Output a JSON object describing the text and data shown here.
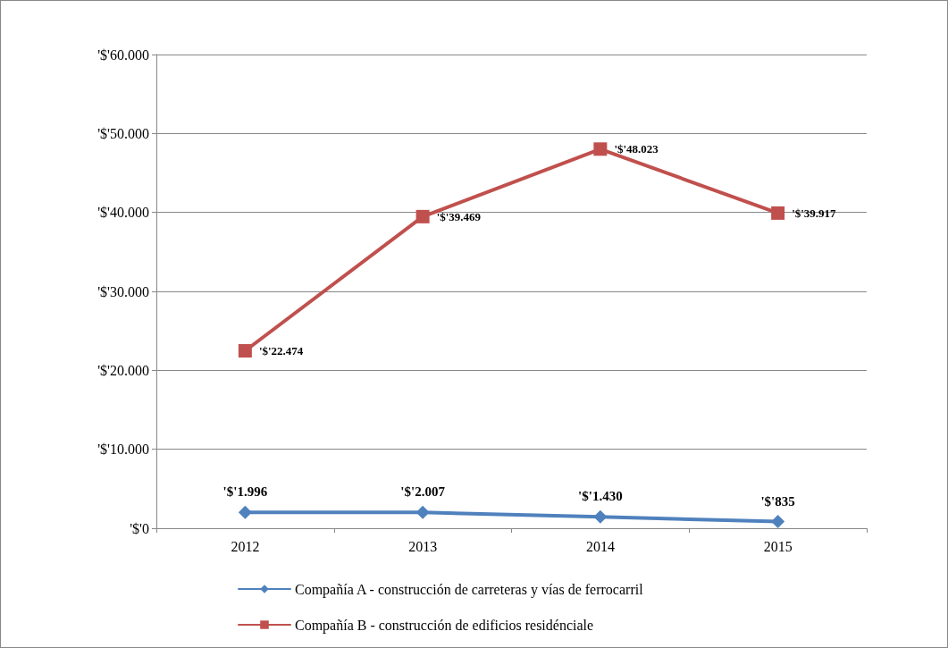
{
  "chart_data": {
    "type": "line",
    "categories": [
      "2012",
      "2013",
      "2014",
      "2015"
    ],
    "series": [
      {
        "name": "Compañía A - construcción de carreteras y vías de ferrocarril",
        "color": "#4f81bd",
        "marker": "diamond",
        "values": [
          1996,
          2007,
          1430,
          835
        ],
        "value_labels": [
          "'$'1.996",
          "'$'2.007",
          "'$'1.430",
          "'$'835"
        ]
      },
      {
        "name": "Compañía B - construcción de edificios residénciale",
        "color": "#c0504d",
        "marker": "square",
        "values": [
          22474,
          39469,
          48023,
          39917
        ],
        "value_labels": [
          "'$'22.474",
          "'$'39.469",
          "'$'48.023",
          "'$'39.917"
        ]
      }
    ],
    "ylim": [
      0,
      60000
    ],
    "yticks": [
      {
        "value": 0,
        "label": "'$'0"
      },
      {
        "value": 10000,
        "label": "'$'10.000"
      },
      {
        "value": 20000,
        "label": "'$'20.000"
      },
      {
        "value": 30000,
        "label": "'$'30.000"
      },
      {
        "value": 40000,
        "label": "'$'40.000"
      },
      {
        "value": 50000,
        "label": "'$'50.000"
      },
      {
        "value": 60000,
        "label": "'$'60.000"
      }
    ],
    "grid": "y",
    "legend": "bottom",
    "line_style": "solid"
  }
}
